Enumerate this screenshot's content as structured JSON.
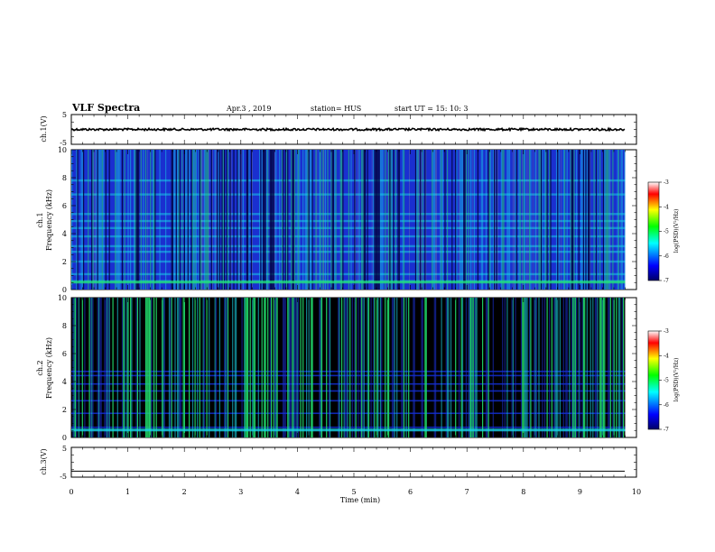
{
  "header": {
    "title": "VLF Spectra",
    "date": "Apr.3  , 2019",
    "station": "station= HUS",
    "start": "start  UT =   15: 10: 3"
  },
  "chart_data": [
    {
      "type": "line",
      "name": "ch1-waveform",
      "ylabel": "ch.1(V)",
      "ylim": [
        -5,
        5
      ],
      "yticks": [
        "5",
        "-5"
      ],
      "xlim": [
        0,
        10
      ],
      "trace_x_range": [
        0,
        9.8
      ],
      "trace_level": 0,
      "trace_color": "#000000"
    },
    {
      "type": "heatmap",
      "name": "ch1-spectrogram",
      "ylabel": "ch.1\nFrequency (kHz)",
      "ylim": [
        0,
        10
      ],
      "yticks": [
        "0",
        "2",
        "4",
        "6",
        "8",
        "10"
      ],
      "xlim": [
        0,
        10
      ],
      "data_x_range": [
        0,
        9.8
      ],
      "colorbar": {
        "label": "log(PSD)(V²/Hz)",
        "range": [
          -7,
          -3
        ],
        "ticks": [
          "-3",
          "-4",
          "-5",
          "-6",
          "-7"
        ]
      }
    },
    {
      "type": "heatmap",
      "name": "ch2-spectrogram",
      "ylabel": "ch.2\nFrequency (kHz)",
      "ylim": [
        0,
        10
      ],
      "yticks": [
        "0",
        "2",
        "4",
        "6",
        "8",
        "10"
      ],
      "xlim": [
        0,
        10
      ],
      "data_x_range": [
        0,
        9.8
      ],
      "colorbar": {
        "label": "log(PSD)(V²/Hz)",
        "range": [
          -7,
          -3
        ],
        "ticks": [
          "-3",
          "-4",
          "-5",
          "-6",
          "-7"
        ]
      }
    },
    {
      "type": "line",
      "name": "ch3-waveform",
      "ylabel": "ch.3(V)",
      "ylim": [
        -5,
        5
      ],
      "yticks": [
        "5",
        "-5"
      ],
      "xlim": [
        0,
        10
      ],
      "trace_x_range": [
        0,
        9.8
      ],
      "trace_level": -3,
      "trace_color": "#000000"
    }
  ],
  "xaxis": {
    "label": "Time (min)",
    "ticks": [
      "0",
      "1",
      "2",
      "3",
      "4",
      "5",
      "6",
      "7",
      "8",
      "9",
      "10"
    ]
  },
  "colors": {
    "background_ch1": "#1a2fd0",
    "background_ch2": "#000000",
    "band_cyan": "#19d6e8",
    "band_green": "#22e07a",
    "colormap": [
      "#000066",
      "#0000ff",
      "#00ffff",
      "#00ff00",
      "#ffff00",
      "#ff0000",
      "#ffffff"
    ]
  }
}
